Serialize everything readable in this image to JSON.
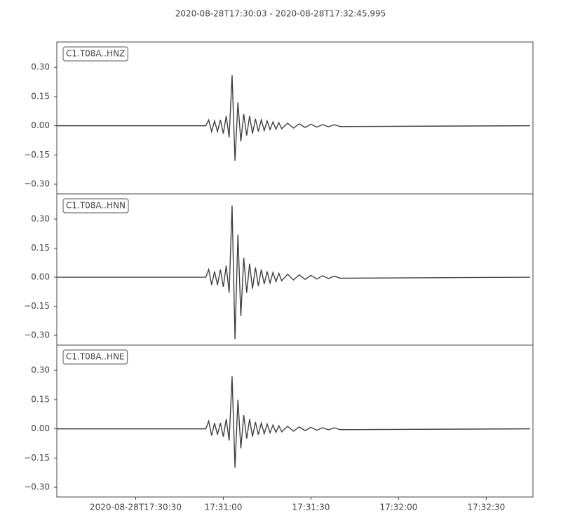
{
  "title": "2020-08-28T17:30:03  -  2020-08-28T17:32:45.995",
  "chart_data": [
    {
      "type": "line",
      "ylim": [
        -0.35,
        0.43
      ],
      "yticks": [
        {
          "value": 0.3,
          "label": "0.30"
        },
        {
          "value": 0.15,
          "label": "0.15"
        },
        {
          "value": 0,
          "label": "0.00"
        },
        {
          "value": -0.15,
          "label": "−0.15"
        },
        {
          "value": -0.3,
          "label": "−0.30"
        }
      ],
      "series": [
        {
          "name": "C1.T08A..HNZ",
          "color": "#404040",
          "x": [
            "17:30:03",
            "17:30:54",
            "17:30:55",
            "17:30:56",
            "17:30:57",
            "17:30:58",
            "17:30:59",
            "17:31:00",
            "17:31:01",
            "17:31:02",
            "17:31:03",
            "17:31:04",
            "17:31:05",
            "17:31:06",
            "17:31:07",
            "17:31:08",
            "17:31:09",
            "17:31:10",
            "17:31:11",
            "17:31:12",
            "17:31:13",
            "17:31:14",
            "17:31:15",
            "17:31:16",
            "17:31:17",
            "17:31:18",
            "17:31:19",
            "17:31:20",
            "17:31:22",
            "17:31:24",
            "17:31:26",
            "17:31:28",
            "17:31:30",
            "17:31:32",
            "17:31:34",
            "17:31:36",
            "17:31:38",
            "17:31:40",
            "17:32:45"
          ],
          "values": [
            0,
            0,
            0.03,
            -0.03,
            0.025,
            -0.03,
            0.03,
            -0.04,
            0.05,
            -0.06,
            0.26,
            -0.18,
            0.12,
            -0.08,
            0.06,
            -0.05,
            0.05,
            -0.04,
            0.035,
            -0.03,
            0.03,
            -0.025,
            0.025,
            -0.02,
            0.02,
            -0.018,
            0.016,
            -0.015,
            0.013,
            -0.012,
            0.01,
            -0.009,
            0.008,
            -0.007,
            0.006,
            -0.005,
            0.005,
            -0.004,
            0
          ]
        }
      ]
    },
    {
      "type": "line",
      "ylim": [
        -0.35,
        0.43
      ],
      "yticks": [
        {
          "value": 0.3,
          "label": "0.30"
        },
        {
          "value": 0.15,
          "label": "0.15"
        },
        {
          "value": 0,
          "label": "0.00"
        },
        {
          "value": -0.15,
          "label": "−0.15"
        },
        {
          "value": -0.3,
          "label": "−0.30"
        }
      ],
      "series": [
        {
          "name": "C1.T08A..HNN",
          "color": "#404040",
          "x": [
            "17:30:03",
            "17:30:54",
            "17:30:55",
            "17:30:56",
            "17:30:57",
            "17:30:58",
            "17:30:59",
            "17:31:00",
            "17:31:01",
            "17:31:02",
            "17:31:03",
            "17:31:04",
            "17:31:05",
            "17:31:06",
            "17:31:07",
            "17:31:08",
            "17:31:09",
            "17:31:10",
            "17:31:11",
            "17:31:12",
            "17:31:13",
            "17:31:14",
            "17:31:15",
            "17:31:16",
            "17:31:17",
            "17:31:18",
            "17:31:19",
            "17:31:20",
            "17:31:22",
            "17:31:24",
            "17:31:26",
            "17:31:28",
            "17:31:30",
            "17:31:32",
            "17:31:34",
            "17:31:36",
            "17:31:38",
            "17:31:40",
            "17:32:45"
          ],
          "values": [
            0,
            0,
            0.04,
            -0.04,
            0.03,
            -0.04,
            0.04,
            -0.05,
            0.06,
            -0.08,
            0.37,
            -0.32,
            0.22,
            -0.2,
            0.1,
            -0.08,
            0.07,
            -0.06,
            0.05,
            -0.045,
            0.04,
            -0.035,
            0.03,
            -0.03,
            0.025,
            -0.022,
            0.02,
            -0.018,
            0.016,
            -0.014,
            0.012,
            -0.011,
            0.01,
            -0.009,
            0.008,
            -0.007,
            0.006,
            -0.005,
            0
          ]
        }
      ]
    },
    {
      "type": "line",
      "ylim": [
        -0.35,
        0.43
      ],
      "yticks": [
        {
          "value": 0.3,
          "label": "0.30"
        },
        {
          "value": 0.15,
          "label": "0.15"
        },
        {
          "value": 0,
          "label": "0.00"
        },
        {
          "value": -0.15,
          "label": "−0.15"
        },
        {
          "value": -0.3,
          "label": "−0.30"
        }
      ],
      "xlim": [
        "2020-08-28T17:30:03",
        "2020-08-28T17:32:45.995"
      ],
      "xticks": [
        "2020-08-28T17:30:30",
        {
          "value": "2020-08-28T17:31:00",
          "label": "17:31:00"
        },
        {
          "value": "2020-08-28T17:31:30",
          "label": "17:31:30"
        },
        {
          "value": "2020-08-28T17:32:00",
          "label": "17:32:00"
        },
        {
          "value": "2020-08-28T17:32:30",
          "label": "17:32:30"
        }
      ],
      "series": [
        {
          "name": "C1.T08A..HNE",
          "color": "#404040",
          "x": [
            "17:30:03",
            "17:30:54",
            "17:30:55",
            "17:30:56",
            "17:30:57",
            "17:30:58",
            "17:30:59",
            "17:31:00",
            "17:31:01",
            "17:31:02",
            "17:31:03",
            "17:31:04",
            "17:31:05",
            "17:31:06",
            "17:31:07",
            "17:31:08",
            "17:31:09",
            "17:31:10",
            "17:31:11",
            "17:31:12",
            "17:31:13",
            "17:31:14",
            "17:31:15",
            "17:31:16",
            "17:31:17",
            "17:31:18",
            "17:31:19",
            "17:31:20",
            "17:31:22",
            "17:31:24",
            "17:31:26",
            "17:31:28",
            "17:31:30",
            "17:31:32",
            "17:31:34",
            "17:31:36",
            "17:31:38",
            "17:31:40",
            "17:32:45"
          ],
          "values": [
            0,
            0,
            0.04,
            -0.035,
            0.03,
            -0.03,
            0.03,
            -0.04,
            0.05,
            -0.06,
            0.27,
            -0.2,
            0.15,
            -0.1,
            0.07,
            -0.05,
            0.05,
            -0.04,
            0.035,
            -0.03,
            0.03,
            -0.025,
            0.025,
            -0.02,
            0.02,
            -0.018,
            0.016,
            -0.015,
            0.013,
            -0.012,
            0.01,
            -0.009,
            0.008,
            -0.007,
            0.006,
            -0.005,
            0.005,
            -0.004,
            0
          ]
        }
      ]
    }
  ]
}
